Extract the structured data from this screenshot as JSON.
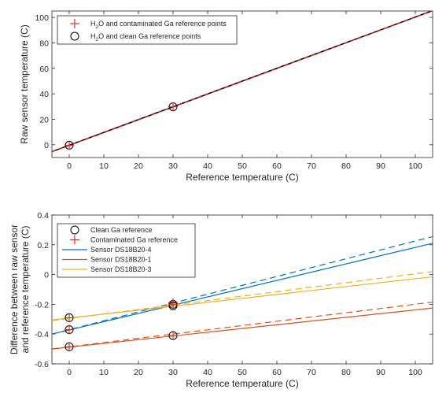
{
  "chart_data": [
    {
      "type": "line",
      "xlabel": "Reference temperature (C)",
      "ylabel": "Raw sensor temperature (C)",
      "xlim": [
        -5,
        105
      ],
      "ylim": [
        -10,
        105
      ],
      "xticks": [
        0,
        10,
        20,
        30,
        40,
        50,
        60,
        70,
        80,
        90,
        100
      ],
      "yticks": [
        0,
        20,
        40,
        60,
        80,
        100
      ],
      "legend_position": "top-left",
      "legend": [
        {
          "label": "H2O and contaminated Ga reference points",
          "marker": "plus",
          "color": "#d62728"
        },
        {
          "label": "H2O and clean Ga reference points",
          "marker": "circle",
          "color": "#000000"
        }
      ],
      "series": [
        {
          "name": "H2O and contaminated Ga reference points",
          "kind": "dashed-line-with-markers",
          "color": "#e02020",
          "marker": "plus",
          "points": [
            [
              0,
              -0.35
            ],
            [
              30,
              29.8
            ]
          ],
          "line": {
            "x": [
              -5,
              105
            ],
            "y": [
              -5.4,
              105.3
            ]
          }
        },
        {
          "name": "H2O and clean Ga reference points",
          "kind": "line-with-markers",
          "color": "#000000",
          "marker": "circle",
          "points": [
            [
              0,
              -0.35
            ],
            [
              30,
              29.8
            ]
          ],
          "line": {
            "x": [
              -5,
              105
            ],
            "y": [
              -5.4,
              105.3
            ]
          }
        }
      ]
    },
    {
      "type": "line",
      "xlabel": "Reference temperature (C)",
      "ylabel": "Difference between raw sensor\nand reference temperature (C)",
      "xlim": [
        -5,
        105
      ],
      "ylim": [
        -0.6,
        0.4
      ],
      "xticks": [
        0,
        10,
        20,
        30,
        40,
        50,
        60,
        70,
        80,
        90,
        100
      ],
      "yticks": [
        -0.6,
        -0.4,
        -0.2,
        0,
        0.2,
        0.4
      ],
      "legend_position": "top-left",
      "legend": [
        {
          "label": "Clean Ga reference",
          "marker": "circle",
          "color": "#000000"
        },
        {
          "label": "Contaminated Ga reference",
          "marker": "plus",
          "color": "#d62728"
        },
        {
          "label": "Sensor DS18B20-4",
          "color": "#0072BD"
        },
        {
          "label": "Sensor DS18B20-1",
          "color": "#D95319"
        },
        {
          "label": "Sensor DS18B20-3",
          "color": "#EDB120"
        }
      ],
      "series": [
        {
          "name": "Sensor DS18B20-4",
          "color": "#0072BD",
          "clean_points": [
            [
              0,
              -0.37
            ],
            [
              30,
              -0.2
            ]
          ],
          "contaminated_points": [
            [
              0,
              -0.37
            ],
            [
              30,
              -0.19
            ]
          ],
          "solid_line": {
            "x": [
              -5,
              105
            ],
            "y": [
              -0.4,
              0.21
            ]
          },
          "dashed_line": {
            "x": [
              -5,
              105
            ],
            "y": [
              -0.4,
              0.255
            ]
          }
        },
        {
          "name": "Sensor DS18B20-1",
          "color": "#D95319",
          "clean_points": [
            [
              0,
              -0.485
            ],
            [
              30,
              -0.41
            ]
          ],
          "contaminated_points": [
            [
              0,
              -0.485
            ],
            [
              30,
              -0.41
            ]
          ],
          "solid_line": {
            "x": [
              -5,
              105
            ],
            "y": [
              -0.5,
              -0.225
            ]
          },
          "dashed_line": {
            "x": [
              -5,
              105
            ],
            "y": [
              -0.5,
              -0.185
            ]
          }
        },
        {
          "name": "Sensor DS18B20-3",
          "color": "#EDB120",
          "clean_points": [
            [
              0,
              -0.29
            ],
            [
              30,
              -0.21
            ]
          ],
          "contaminated_points": [
            [
              0,
              -0.29
            ],
            [
              30,
              -0.2
            ]
          ],
          "solid_line": {
            "x": [
              -5,
              105
            ],
            "y": [
              -0.305,
              -0.015
            ]
          },
          "dashed_line": {
            "x": [
              -5,
              105
            ],
            "y": [
              -0.31,
              0.02
            ]
          }
        }
      ]
    }
  ]
}
